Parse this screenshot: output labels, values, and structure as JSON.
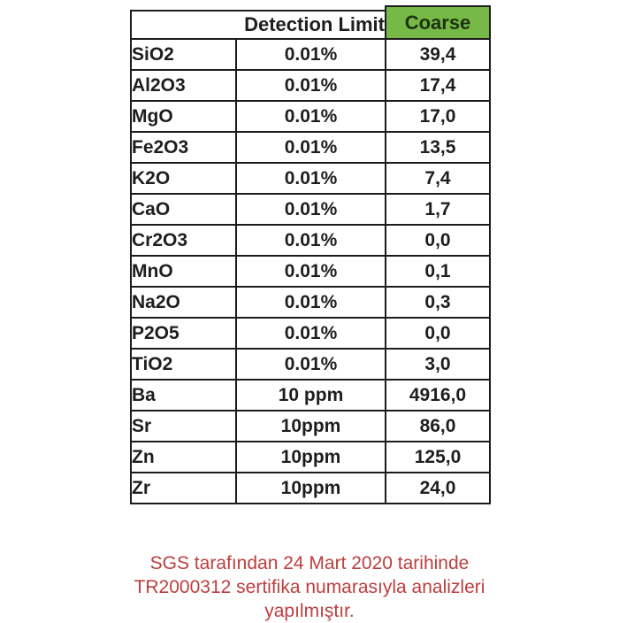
{
  "table": {
    "header": {
      "detection_limit": "Detection Limit",
      "coarse": "Coarse"
    },
    "rows": [
      {
        "element": "SiO2",
        "limit": "0.01%",
        "coarse": "39,4"
      },
      {
        "element": "Al2O3",
        "limit": "0.01%",
        "coarse": "17,4"
      },
      {
        "element": "MgO",
        "limit": "0.01%",
        "coarse": "17,0"
      },
      {
        "element": "Fe2O3",
        "limit": "0.01%",
        "coarse": "13,5"
      },
      {
        "element": "K2O",
        "limit": "0.01%",
        "coarse": "7,4"
      },
      {
        "element": "CaO",
        "limit": "0.01%",
        "coarse": "1,7"
      },
      {
        "element": "Cr2O3",
        "limit": "0.01%",
        "coarse": "0,0"
      },
      {
        "element": "MnO",
        "limit": "0.01%",
        "coarse": "0,1"
      },
      {
        "element": "Na2O",
        "limit": "0.01%",
        "coarse": "0,3"
      },
      {
        "element": "P2O5",
        "limit": "0.01%",
        "coarse": "0,0"
      },
      {
        "element": "TiO2",
        "limit": "0.01%",
        "coarse": "3,0"
      },
      {
        "element": "Ba",
        "limit": "10 ppm",
        "coarse": "4916,0"
      },
      {
        "element": "Sr",
        "limit": "10ppm",
        "coarse": "86,0"
      },
      {
        "element": "Zn",
        "limit": "10ppm",
        "coarse": "125,0"
      },
      {
        "element": "Zr",
        "limit": "10ppm",
        "coarse": "24,0"
      }
    ]
  },
  "footer": {
    "lines": [
      "SGS tarafından 24 Mart 2020 tarihinde",
      "TR2000312 sertifika numarasıyla analizleri",
      "yapılmıştır."
    ]
  },
  "colors": {
    "header_green": "#76b947",
    "header_text": "#1c330f",
    "border": "#1b1b1b",
    "footer_red": "#bd3e3e"
  },
  "chart_data": {
    "type": "table",
    "title": "",
    "columns": [
      "",
      "Detection Limit",
      "Coarse"
    ],
    "rows": [
      [
        "SiO2",
        "0.01%",
        39.4
      ],
      [
        "Al2O3",
        "0.01%",
        17.4
      ],
      [
        "MgO",
        "0.01%",
        17.0
      ],
      [
        "Fe2O3",
        "0.01%",
        13.5
      ],
      [
        "K2O",
        "0.01%",
        7.4
      ],
      [
        "CaO",
        "0.01%",
        1.7
      ],
      [
        "Cr2O3",
        "0.01%",
        0.0
      ],
      [
        "MnO",
        "0.01%",
        0.1
      ],
      [
        "Na2O",
        "0.01%",
        0.3
      ],
      [
        "P2O5",
        "0.01%",
        0.0
      ],
      [
        "TiO2",
        "0.01%",
        3.0
      ],
      [
        "Ba",
        "10 ppm",
        4916.0
      ],
      [
        "Sr",
        "10ppm",
        86.0
      ],
      [
        "Zn",
        "10ppm",
        125.0
      ],
      [
        "Zr",
        "10ppm",
        24.0
      ]
    ]
  }
}
